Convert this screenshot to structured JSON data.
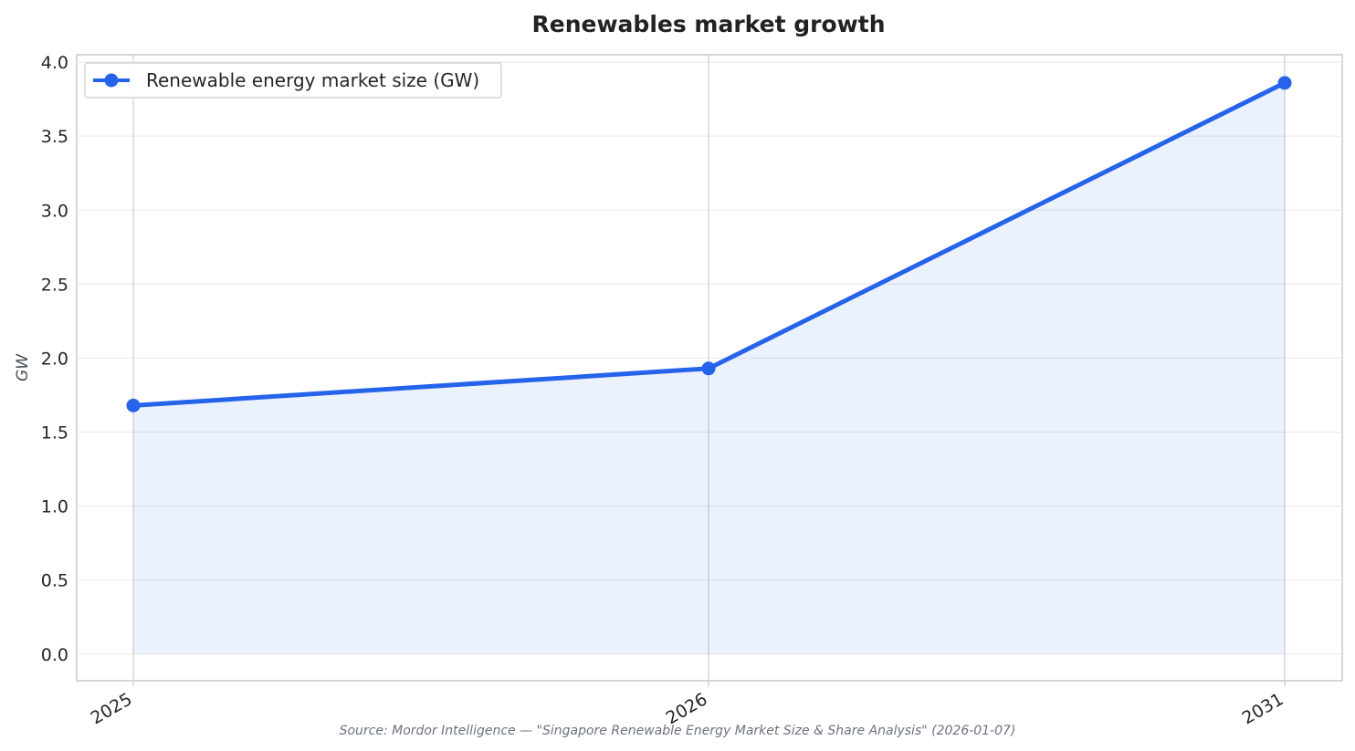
{
  "chart_data": {
    "type": "line",
    "title": "Renewables market growth",
    "xlabel": "",
    "ylabel": "GW",
    "x": [
      "2025",
      "2026",
      "2031"
    ],
    "series": [
      {
        "name": "Renewable energy market size (GW)",
        "values": [
          1.68,
          1.93,
          3.86
        ],
        "color": "#2563eb",
        "fill": "#2563eb"
      }
    ],
    "ylim": [
      -0.18,
      4.05
    ],
    "yticks": [
      0.0,
      0.5,
      1.0,
      1.5,
      2.0,
      2.5,
      3.0,
      3.5,
      4.0
    ],
    "ytick_labels": [
      "0.0",
      "0.5",
      "1.0",
      "1.5",
      "2.0",
      "2.5",
      "3.0",
      "3.5",
      "4.0"
    ],
    "grid": true,
    "legend_position": "top-left",
    "source": "Source: Mordor Intelligence — \"Singapore Renewable Energy Market Size & Share Analysis\" (2026-01-07)"
  }
}
